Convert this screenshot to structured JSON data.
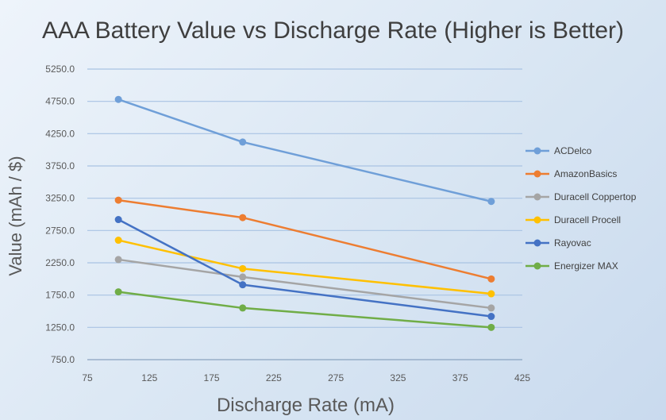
{
  "chart_data": {
    "type": "line",
    "title": "AAA Battery Value vs Discharge Rate (Higher is Better)",
    "xlabel": "Discharge Rate (mA)",
    "ylabel": "Value (mAh / $)",
    "xlim": [
      75,
      425
    ],
    "ylim": [
      750,
      5250
    ],
    "xticks": [
      "75",
      "125",
      "175",
      "225",
      "275",
      "325",
      "375",
      "425"
    ],
    "yticks": [
      "750.0",
      "1250.0",
      "1750.0",
      "2250.0",
      "2750.0",
      "3250.0",
      "3750.0",
      "4250.0",
      "4750.0",
      "5250.0"
    ],
    "x": [
      100,
      200,
      400
    ],
    "grid": true,
    "legend_position": "right",
    "series": [
      {
        "name": "ACDelco",
        "color": "#6f9fd8",
        "values": [
          4780,
          4120,
          3200
        ]
      },
      {
        "name": "AmazonBasics",
        "color": "#ed7d31",
        "values": [
          3220,
          2950,
          2000
        ]
      },
      {
        "name": "Duracell Coppertop",
        "color": "#a5a5a5",
        "values": [
          2300,
          2030,
          1550
        ]
      },
      {
        "name": "Duracell Procell",
        "color": "#ffc000",
        "values": [
          2600,
          2160,
          1770
        ]
      },
      {
        "name": "Rayovac",
        "color": "#4472c4",
        "values": [
          2920,
          1910,
          1420
        ]
      },
      {
        "name": "Energizer MAX",
        "color": "#70ad47",
        "values": [
          1800,
          1550,
          1250
        ]
      }
    ]
  }
}
